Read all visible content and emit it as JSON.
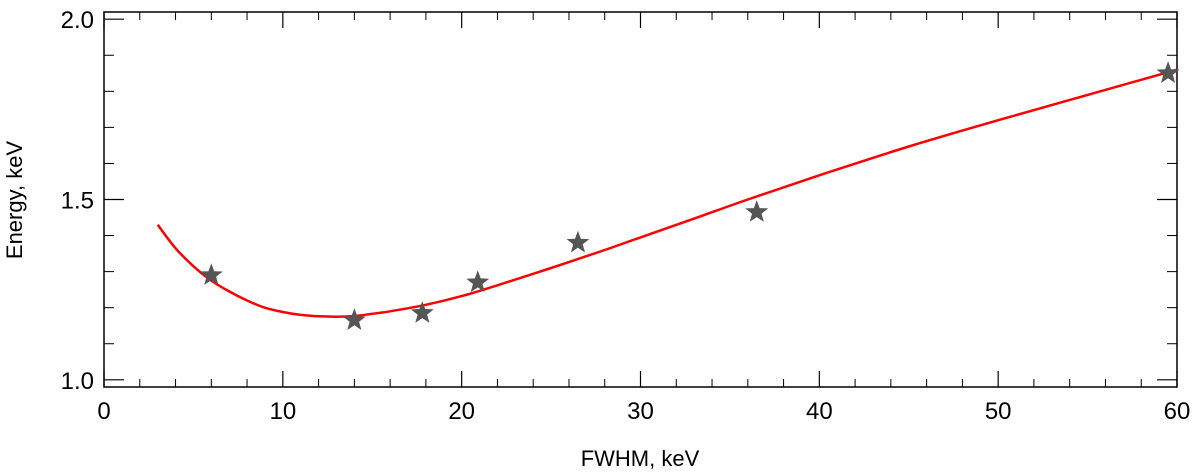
{
  "chart_data": {
    "type": "scatter",
    "title": "",
    "xlabel": "FWHM, keV",
    "ylabel": "Energy, keV",
    "xlim": [
      0,
      60
    ],
    "ylim": [
      0.98,
      2.02
    ],
    "x_ticks": [
      0,
      10,
      20,
      30,
      40,
      50,
      60
    ],
    "x_tick_labels": [
      "0",
      "10",
      "20",
      "30",
      "40",
      "50",
      "60"
    ],
    "y_ticks": [
      1.0,
      1.5,
      2.0
    ],
    "y_tick_labels": [
      "1.0",
      "1.5",
      "2.0"
    ],
    "grid": false,
    "legend": "none",
    "series": [
      {
        "kind": "points",
        "marker": "star",
        "color": "#555555",
        "x": [
          6.0,
          14.0,
          17.8,
          20.9,
          26.5,
          36.5,
          59.5
        ],
        "y": [
          1.29,
          1.165,
          1.185,
          1.27,
          1.38,
          1.465,
          1.85
        ]
      },
      {
        "kind": "line",
        "color": "#ff0000",
        "x": [
          3,
          4,
          5,
          6,
          7,
          8,
          9,
          10,
          11,
          12,
          13,
          14,
          15,
          16,
          18,
          20,
          22,
          25,
          28,
          30,
          33,
          36,
          40,
          45,
          50,
          55,
          60
        ],
        "y": [
          1.43,
          1.365,
          1.315,
          1.275,
          1.245,
          1.22,
          1.2,
          1.188,
          1.18,
          1.176,
          1.175,
          1.177,
          1.183,
          1.19,
          1.208,
          1.232,
          1.262,
          1.31,
          1.36,
          1.395,
          1.447,
          1.5,
          1.567,
          1.647,
          1.72,
          1.79,
          1.86
        ]
      }
    ]
  }
}
